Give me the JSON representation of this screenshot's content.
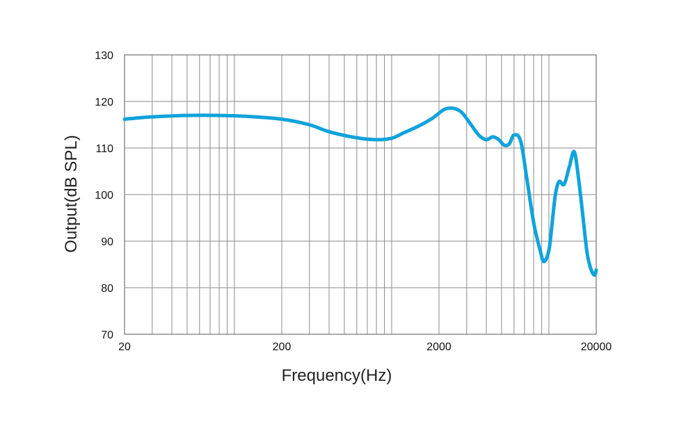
{
  "chart_data": {
    "type": "line",
    "xlabel": "Frequency(Hz)",
    "ylabel": "Output(dB SPL)",
    "x_scale": "log",
    "xlim": [
      20,
      20000
    ],
    "ylim": [
      70,
      130
    ],
    "x_ticks": [
      "20",
      "200",
      "2000",
      "20000"
    ],
    "y_ticks": [
      "70",
      "80",
      "90",
      "100",
      "110",
      "120",
      "130"
    ],
    "grid": true,
    "line_color": "#0fa3dc",
    "series": [
      {
        "x": [
          20,
          30,
          50,
          80,
          120,
          200,
          300,
          400,
          600,
          800,
          1000,
          1200,
          1500,
          1800,
          2000,
          2200,
          2500,
          2800,
          3200,
          3600,
          4000,
          4400,
          4800,
          5200,
          5600,
          6000,
          6600,
          7200,
          8000,
          8800,
          9300,
          10000,
          10500,
          11000,
          11600,
          12500,
          13500,
          14500,
          15500,
          16500,
          17500,
          18500,
          19500,
          20000
        ],
        "y": [
          116.2,
          116.7,
          117.0,
          117.0,
          116.8,
          116.2,
          115.0,
          113.5,
          112.2,
          111.8,
          112.1,
          113.3,
          114.8,
          116.3,
          117.5,
          118.4,
          118.5,
          117.6,
          115.0,
          112.7,
          111.8,
          112.4,
          111.8,
          110.6,
          110.9,
          112.8,
          111.6,
          104.0,
          94.0,
          88.0,
          85.6,
          88.0,
          94.0,
          100.0,
          102.8,
          102.2,
          106.0,
          109.2,
          103.0,
          95.0,
          87.5,
          84.0,
          82.7,
          83.8
        ]
      }
    ]
  }
}
